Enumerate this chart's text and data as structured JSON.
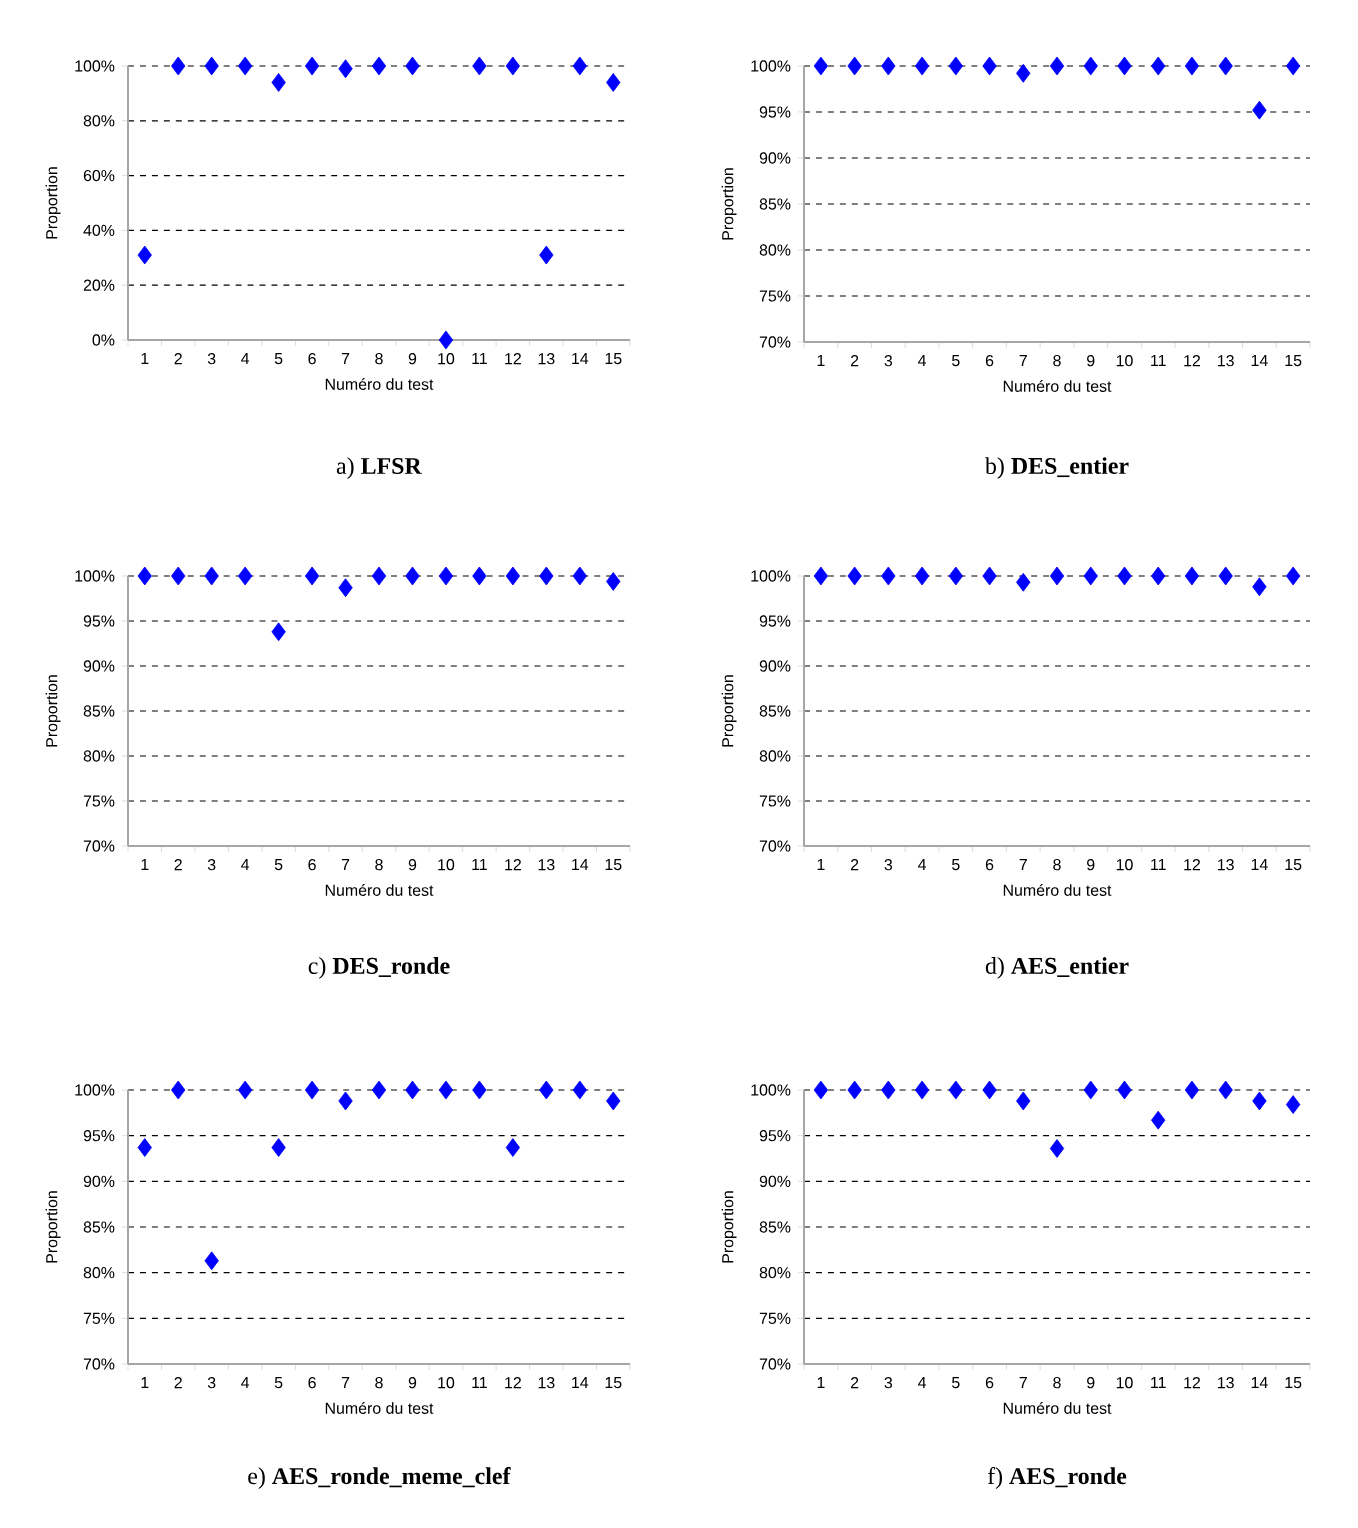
{
  "chart_data": [
    {
      "type": "scatter",
      "title": "a) **LFSR**",
      "xlabel": "Numéro du test",
      "ylabel": "Proportion",
      "categories": [
        "1",
        "2",
        "3",
        "4",
        "5",
        "6",
        "7",
        "8",
        "9",
        "10",
        "11",
        "12",
        "13",
        "14",
        "15"
      ],
      "values": [
        31,
        100,
        100,
        100,
        94,
        100,
        99,
        100,
        100,
        0,
        100,
        100,
        31,
        100,
        94
      ],
      "color": "#0000ff",
      "ylim": [
        0,
        100
      ],
      "yticks": [
        {
          "value": 0,
          "label": "0%"
        },
        {
          "value": 20,
          "label": "20%"
        },
        {
          "value": 40,
          "label": "40%"
        },
        {
          "value": 60,
          "label": "60%"
        },
        {
          "value": 80,
          "label": "80%"
        },
        {
          "value": 100,
          "label": "100%"
        }
      ],
      "grid": "y",
      "marker": "diamond"
    },
    {
      "type": "scatter",
      "title": "b) **DES_entier**",
      "xlabel": "Numéro du test",
      "ylabel": "Proportion",
      "categories": [
        "1",
        "2",
        "3",
        "4",
        "5",
        "6",
        "7",
        "8",
        "9",
        "10",
        "11",
        "12",
        "13",
        "14",
        "15"
      ],
      "values": [
        100,
        100,
        100,
        100,
        100,
        100,
        99.2,
        100,
        100,
        100,
        100,
        100,
        100,
        95.2,
        100
      ],
      "color": "#0000ff",
      "ylim": [
        70,
        100
      ],
      "yticks": [
        {
          "value": 70,
          "label": "70%"
        },
        {
          "value": 75,
          "label": "75%"
        },
        {
          "value": 80,
          "label": "80%"
        },
        {
          "value": 85,
          "label": "85%"
        },
        {
          "value": 90,
          "label": "90%"
        },
        {
          "value": 95,
          "label": "95%"
        },
        {
          "value": 100,
          "label": "100%"
        }
      ],
      "grid": "y",
      "marker": "diamond"
    },
    {
      "type": "scatter",
      "title": "c) **DES_ronde**",
      "xlabel": "Numéro du test",
      "ylabel": "Proportion",
      "categories": [
        "1",
        "2",
        "3",
        "4",
        "5",
        "6",
        "7",
        "8",
        "9",
        "10",
        "11",
        "12",
        "13",
        "14",
        "15"
      ],
      "values": [
        100,
        100,
        100,
        100,
        93.8,
        100,
        98.7,
        100,
        100,
        100,
        100,
        100,
        100,
        100,
        99.4
      ],
      "color": "#0000ff",
      "ylim": [
        70,
        100
      ],
      "yticks": [
        {
          "value": 70,
          "label": "70%"
        },
        {
          "value": 75,
          "label": "75%"
        },
        {
          "value": 80,
          "label": "80%"
        },
        {
          "value": 85,
          "label": "85%"
        },
        {
          "value": 90,
          "label": "90%"
        },
        {
          "value": 95,
          "label": "95%"
        },
        {
          "value": 100,
          "label": "100%"
        }
      ],
      "grid": "y",
      "marker": "diamond"
    },
    {
      "type": "scatter",
      "title": "d) **AES_entier**",
      "xlabel": "Numéro du test",
      "ylabel": "Proportion",
      "categories": [
        "1",
        "2",
        "3",
        "4",
        "5",
        "6",
        "7",
        "8",
        "9",
        "10",
        "11",
        "12",
        "13",
        "14",
        "15"
      ],
      "values": [
        100,
        100,
        100,
        100,
        100,
        100,
        99.3,
        100,
        100,
        100,
        100,
        100,
        100,
        98.8,
        100
      ],
      "color": "#0000ff",
      "ylim": [
        70,
        100
      ],
      "yticks": [
        {
          "value": 70,
          "label": "70%"
        },
        {
          "value": 75,
          "label": "75%"
        },
        {
          "value": 80,
          "label": "80%"
        },
        {
          "value": 85,
          "label": "85%"
        },
        {
          "value": 90,
          "label": "90%"
        },
        {
          "value": 95,
          "label": "95%"
        },
        {
          "value": 100,
          "label": "100%"
        }
      ],
      "grid": "y",
      "marker": "diamond"
    },
    {
      "type": "scatter",
      "title": "e) **AES_ronde_meme_clef**",
      "xlabel": "Numéro du test",
      "ylabel": "Proportion",
      "categories": [
        "1",
        "2",
        "3",
        "4",
        "5",
        "6",
        "7",
        "8",
        "9",
        "10",
        "11",
        "12",
        "13",
        "14",
        "15"
      ],
      "values": [
        93.7,
        100,
        81.3,
        100,
        93.7,
        100,
        98.8,
        100,
        100,
        100,
        100,
        93.7,
        100,
        100,
        98.8
      ],
      "color": "#0000ff",
      "ylim": [
        70,
        100
      ],
      "yticks": [
        {
          "value": 70,
          "label": "70%"
        },
        {
          "value": 75,
          "label": "75%"
        },
        {
          "value": 80,
          "label": "80%"
        },
        {
          "value": 85,
          "label": "85%"
        },
        {
          "value": 90,
          "label": "90%"
        },
        {
          "value": 95,
          "label": "95%"
        },
        {
          "value": 100,
          "label": "100%"
        }
      ],
      "grid": "y",
      "marker": "diamond"
    },
    {
      "type": "scatter",
      "title": "f) **AES_ronde**",
      "xlabel": "Numéro du test",
      "ylabel": "Proportion",
      "categories": [
        "1",
        "2",
        "3",
        "4",
        "5",
        "6",
        "7",
        "8",
        "9",
        "10",
        "11",
        "12",
        "13",
        "14",
        "15"
      ],
      "values": [
        100,
        100,
        100,
        100,
        100,
        100,
        98.8,
        93.6,
        100,
        100,
        96.7,
        100,
        100,
        98.8,
        98.4
      ],
      "color": "#0000ff",
      "ylim": [
        70,
        100
      ],
      "yticks": [
        {
          "value": 70,
          "label": "70%"
        },
        {
          "value": 75,
          "label": "75%"
        },
        {
          "value": 80,
          "label": "80%"
        },
        {
          "value": 85,
          "label": "85%"
        },
        {
          "value": 90,
          "label": "90%"
        },
        {
          "value": 95,
          "label": "95%"
        },
        {
          "value": 100,
          "label": "100%"
        }
      ],
      "grid": "y",
      "marker": "diamond"
    }
  ]
}
